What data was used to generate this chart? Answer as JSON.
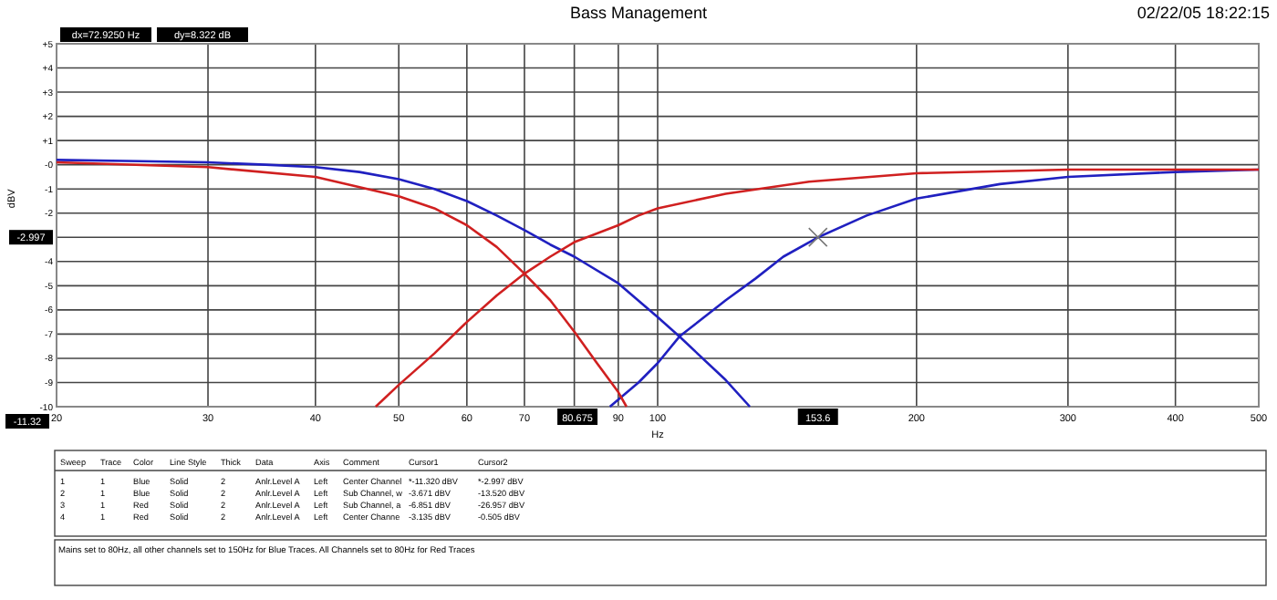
{
  "chart_data": {
    "type": "line",
    "title": "Bass Management",
    "xlabel": "Hz",
    "ylabel": "dBV",
    "log": "x",
    "grid": true,
    "marker": "none",
    "line_style": "solid",
    "xlim": [
      20,
      500
    ],
    "xticks": [
      20,
      30,
      40,
      50,
      60,
      70,
      {
        "value": 80,
        "label": null
      },
      90,
      100,
      200,
      300,
      400,
      500
    ],
    "ylim": [
      -10,
      5
    ],
    "yticks": [
      {
        "value": 5,
        "label": "+5"
      },
      {
        "value": 4,
        "label": "+4"
      },
      {
        "value": 3,
        "label": "+3"
      },
      {
        "value": 2,
        "label": "+2"
      },
      {
        "value": 1,
        "label": "+1"
      },
      {
        "value": 0,
        "label": "-0"
      },
      -1,
      -2,
      {
        "value": -3,
        "label": null
      },
      -4,
      -5,
      -6,
      -7,
      -8,
      -9,
      -10
    ],
    "series": [
      {
        "color": "#2020c0",
        "x": [
          20,
          25,
          30,
          35,
          40,
          45,
          50,
          55,
          60,
          65,
          70,
          75,
          80,
          90,
          100,
          106,
          120,
          128
        ],
        "values": [
          0.2,
          0.15,
          0.1,
          0,
          -0.1,
          -0.3,
          -0.6,
          -1,
          -1.5,
          -2.1,
          -2.7,
          -3.3,
          -3.8,
          -4.9,
          -6.3,
          -7.1,
          -8.9,
          -10
        ]
      },
      {
        "color": "#2020c0",
        "x": [
          88,
          95,
          100,
          106,
          120,
          130,
          140,
          153.6,
          175,
          200,
          250,
          300,
          400,
          500
        ],
        "values": [
          -10,
          -9,
          -8.2,
          -7.1,
          -5.6,
          -4.7,
          -3.8,
          -3,
          -2.1,
          -1.4,
          -0.8,
          -0.5,
          -0.3,
          -0.2
        ]
      },
      {
        "color": "#d02020",
        "x": [
          47,
          50,
          55,
          60,
          65,
          70,
          75,
          80,
          90,
          95,
          100,
          120,
          150,
          200,
          300,
          400,
          500
        ],
        "values": [
          -10,
          -9.1,
          -7.8,
          -6.5,
          -5.4,
          -4.5,
          -3.8,
          -3.2,
          -2.5,
          -2.1,
          -1.8,
          -1.2,
          -0.7,
          -0.35,
          -0.2,
          -0.2,
          -0.2
        ]
      },
      {
        "color": "#d02020",
        "x": [
          20,
          30,
          40,
          50,
          55,
          60,
          65,
          70,
          75,
          80,
          85,
          90,
          92
        ],
        "values": [
          0.1,
          -0.1,
          -0.5,
          -1.3,
          -1.8,
          -2.5,
          -3.4,
          -4.5,
          -5.6,
          -6.9,
          -8.2,
          -9.4,
          -10
        ]
      }
    ],
    "annotations": [
      "dx=72.9250 Hz",
      "dy=8.322  dB",
      "02/22/05 18:22:15",
      {
        "text": "-2.997",
        "y": -2.997
      },
      "-11.32",
      {
        "text": "80.675",
        "x": 80.675
      },
      {
        "text": "153.6",
        "x": 153.6
      },
      "Mains set to 80Hz, all other channels set to 150Hz for Blue Traces.  All Channels set to 80Hz for Red Traces",
      "Sweep",
      "Trace",
      "Color",
      "Line Style",
      "Thick",
      "Data",
      "Axis",
      "Comment",
      "Cursor1",
      "Cursor2",
      "1",
      "1",
      "Blue",
      "Solid",
      "2",
      "Anlr.Level A",
      "Left",
      "Center Channel",
      "*-11.320  dBV",
      "*-2.997  dBV",
      "2",
      "1",
      "Blue",
      "Solid",
      "2",
      "Anlr.Level A",
      "Left",
      "Sub Channel, w",
      "-3.671  dBV",
      "-13.520  dBV",
      "3",
      "1",
      "Red",
      "Solid",
      "2",
      "Anlr.Level A",
      "Left",
      "Sub Channel, a",
      "-6.851  dBV",
      "-26.957  dBV",
      "4",
      "1",
      "Red",
      "Solid",
      "2",
      "Anlr.Level A",
      "Left",
      "Center Channe",
      "-3.135  dBV",
      "-0.505  dBV"
    ]
  }
}
